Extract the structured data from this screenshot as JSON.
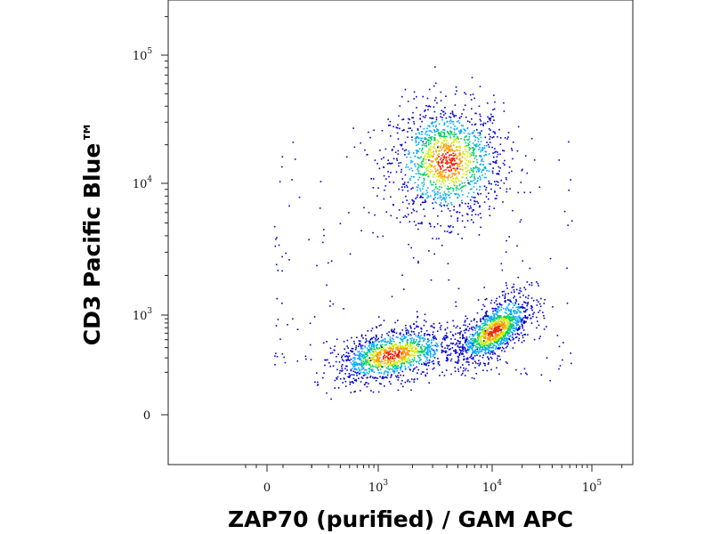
{
  "chart_data": {
    "type": "scatter",
    "style": "flow-cytometry density dot plot (pseudocolor)",
    "xlabel": "ZAP70 (purified) / GAM APC",
    "ylabel": "CD3 Pacific Blue™",
    "x_scale": "biexponential",
    "y_scale": "biexponential",
    "xlim": [
      -300,
      200000
    ],
    "ylim": [
      -300,
      300000
    ],
    "x_ticks": [
      {
        "base": "0",
        "exp": "",
        "value": 0
      },
      {
        "base": "10",
        "exp": "3",
        "value": 1000
      },
      {
        "base": "10",
        "exp": "4",
        "value": 10000
      },
      {
        "base": "10",
        "exp": "5",
        "value": 100000
      }
    ],
    "y_ticks": [
      {
        "base": "0",
        "exp": "",
        "value": 0
      },
      {
        "base": "10",
        "exp": "3",
        "value": 1000
      },
      {
        "base": "10",
        "exp": "4",
        "value": 10000
      },
      {
        "base": "10",
        "exp": "5",
        "value": 100000
      }
    ],
    "density_colors": [
      "#0000cc",
      "#00aaff",
      "#00cc66",
      "#ccee00",
      "#ff9900",
      "#ee2200"
    ],
    "populations": [
      {
        "x_center": 4000,
        "y_center": 15000,
        "x_spread": 0.5,
        "y_spread": 0.45,
        "relative_count": 1.0
      },
      {
        "x_center": 10500,
        "y_center": 650,
        "x_spread": 0.35,
        "y_spread": 0.3,
        "relative_count": 0.9
      },
      {
        "x_center": 1300,
        "y_center": 330,
        "x_spread": 0.55,
        "y_spread": 0.3,
        "relative_count": 0.9
      }
    ],
    "grid": false,
    "legend": "none"
  }
}
